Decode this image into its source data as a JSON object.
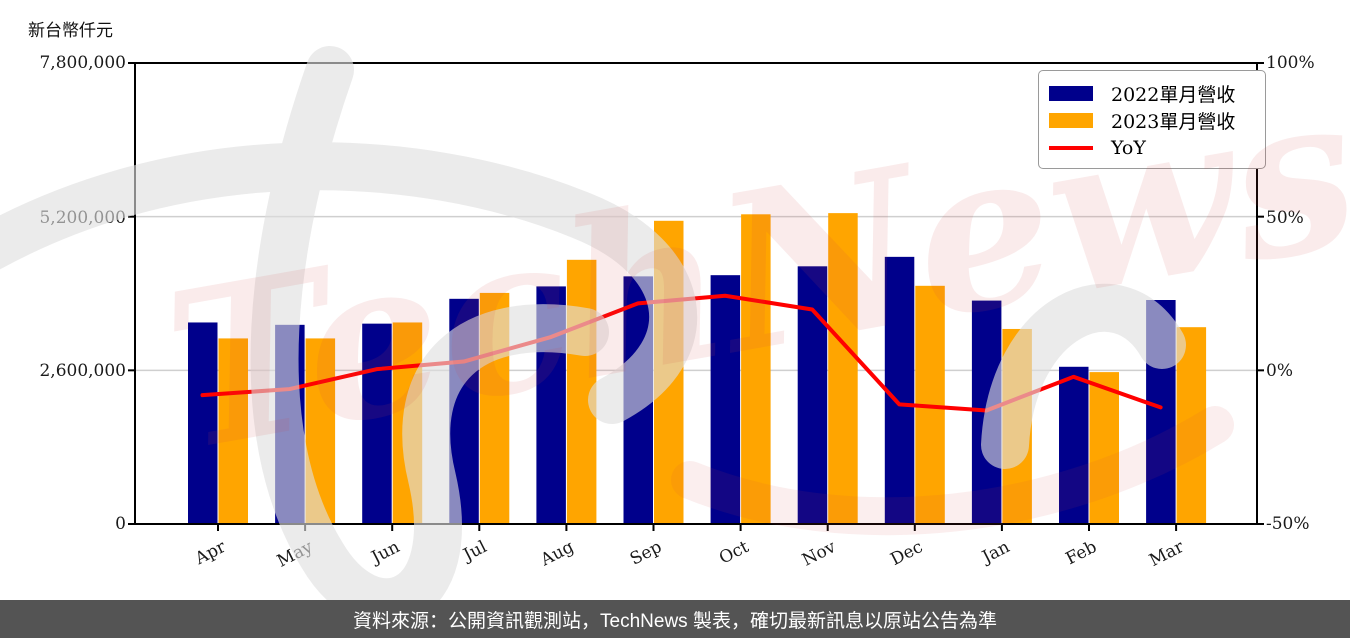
{
  "header": {
    "axis_unit_label": "新台幣仟元"
  },
  "footer": {
    "text": "資料來源：公開資訊觀測站，TechNews 製表，確切最新訊息以原站公告為準",
    "background": "#545454"
  },
  "watermark": {
    "text": "TechNews",
    "color": "#d64545"
  },
  "colors": {
    "bar_2022": "#00008B",
    "bar_2023": "#FFA500",
    "yoy_line": "#FF0000",
    "grid": "#cfcfcf",
    "axis": "#000000"
  },
  "chart_data": {
    "type": "bar",
    "title": "新台幣仟元",
    "categories": [
      "Apr",
      "May",
      "Jun",
      "Jul",
      "Aug",
      "Sep",
      "Oct",
      "Nov",
      "Dec",
      "Jan",
      "Feb",
      "Mar"
    ],
    "series": [
      {
        "name": "2022單月營收",
        "color": "#00008B",
        "values": [
          3410000,
          3370000,
          3390000,
          3810000,
          4020000,
          4190000,
          4210000,
          4360000,
          4520000,
          3780000,
          2660000,
          3790000
        ]
      },
      {
        "name": "2023單月營收",
        "color": "#FFA500",
        "values": [
          3140000,
          3140000,
          3410000,
          3910000,
          4470000,
          5130000,
          5240000,
          5260000,
          4030000,
          3300000,
          2570000,
          3330000
        ]
      }
    ],
    "line_series": {
      "name": "YoY",
      "color": "#FF0000",
      "unit": "percent",
      "values": [
        -8,
        -6,
        0.5,
        3,
        11,
        22,
        24.5,
        20,
        -11,
        -13,
        -2,
        -12
      ]
    },
    "left_axis": {
      "title": "新台幣仟元",
      "ticks": [
        "7,800,000",
        "5,200,000",
        "2,600,000",
        "0"
      ],
      "tick_values": [
        7800000,
        5200000,
        2600000,
        0
      ],
      "range": [
        0,
        7800000
      ]
    },
    "right_axis": {
      "ticks": [
        "100%",
        "50%",
        "0%",
        "-50%"
      ],
      "tick_values": [
        100,
        50,
        0,
        -50
      ],
      "range": [
        -50,
        100
      ]
    },
    "x_axis": {
      "tick_rotation_deg": -27
    },
    "legend_position": "top-right",
    "grid": "horizontal"
  }
}
